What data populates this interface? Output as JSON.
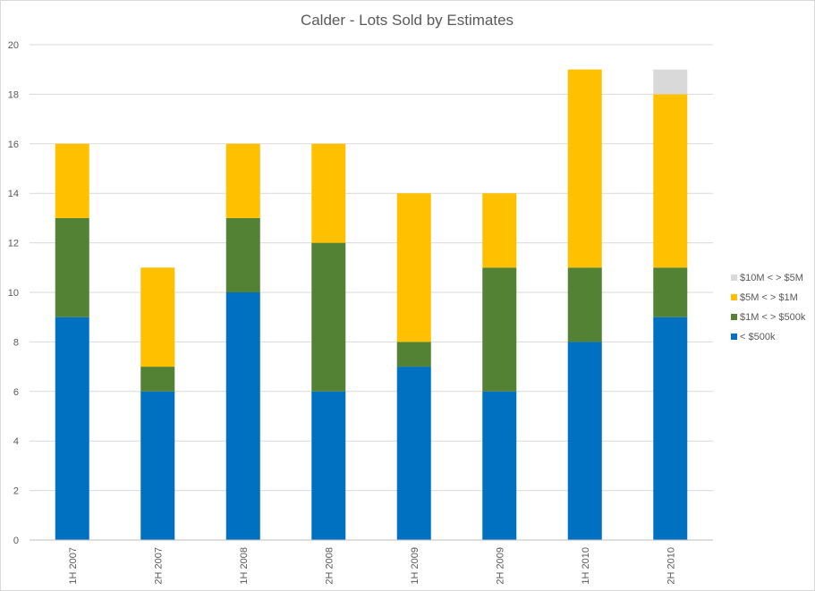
{
  "chart_data": {
    "type": "bar",
    "stacked": true,
    "title": "Calder - Lots Sold by Estimates",
    "xlabel": "",
    "ylabel": "",
    "categories": [
      "1H 2007",
      "2H 2007",
      "1H 2008",
      "2H 2008",
      "1H 2009",
      "2H 2009",
      "1H 2010",
      "2H 2010"
    ],
    "ylim": [
      0,
      20
    ],
    "yticks": [
      0,
      2,
      4,
      6,
      8,
      10,
      12,
      14,
      16,
      18,
      20
    ],
    "grid": true,
    "legend_position": "right",
    "series": [
      {
        "name": "< $500k",
        "color": "#0070C0",
        "values": [
          9,
          6,
          10,
          6,
          7,
          6,
          8,
          9
        ]
      },
      {
        "name": "$1M < > $500k",
        "color": "#548235",
        "values": [
          4,
          1,
          3,
          6,
          1,
          5,
          3,
          2
        ]
      },
      {
        "name": "$5M < > $1M",
        "color": "#FFC000",
        "values": [
          3,
          4,
          3,
          4,
          6,
          3,
          8,
          7
        ]
      },
      {
        "name": "$10M < > $5M",
        "color": "#D9D9D9",
        "values": [
          0,
          0,
          0,
          0,
          0,
          0,
          0,
          1
        ]
      }
    ]
  }
}
